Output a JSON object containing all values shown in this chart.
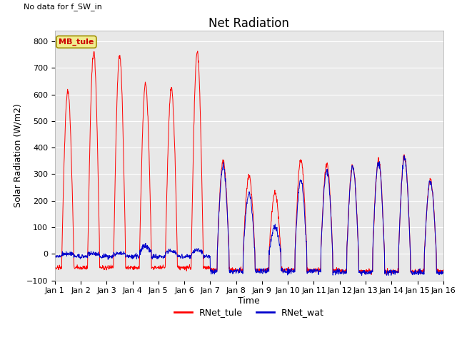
{
  "title": "Net Radiation",
  "top_left_text": "No data for f_SW_in",
  "ylabel": "Solar Radiation (W/m2)",
  "xlabel": "Time",
  "ylim": [
    -100,
    840
  ],
  "yticks": [
    -100,
    0,
    100,
    200,
    300,
    400,
    500,
    600,
    700,
    800
  ],
  "xtick_labels": [
    "Jan 1",
    "Jan 2",
    "Jan 3",
    "Jan 4",
    "Jan 5",
    "Jan 6",
    "Jan 7",
    "Jan 8",
    "Jan 9",
    "Jan 10",
    "Jan 11",
    "Jan 12",
    "Jan 13",
    "Jan 14",
    "Jan 15",
    "Jan 16"
  ],
  "legend_label": "MB_tule",
  "legend_box_color": "#f0ec90",
  "legend_box_edge": "#a09000",
  "line1_color": "#ff0000",
  "line1_label": "RNet_tule",
  "line2_color": "#0000cc",
  "line2_label": "RNet_wat",
  "bg_color": "#e8e8e8",
  "n_days": 15,
  "title_fontsize": 12,
  "label_fontsize": 9,
  "tick_fontsize": 8
}
